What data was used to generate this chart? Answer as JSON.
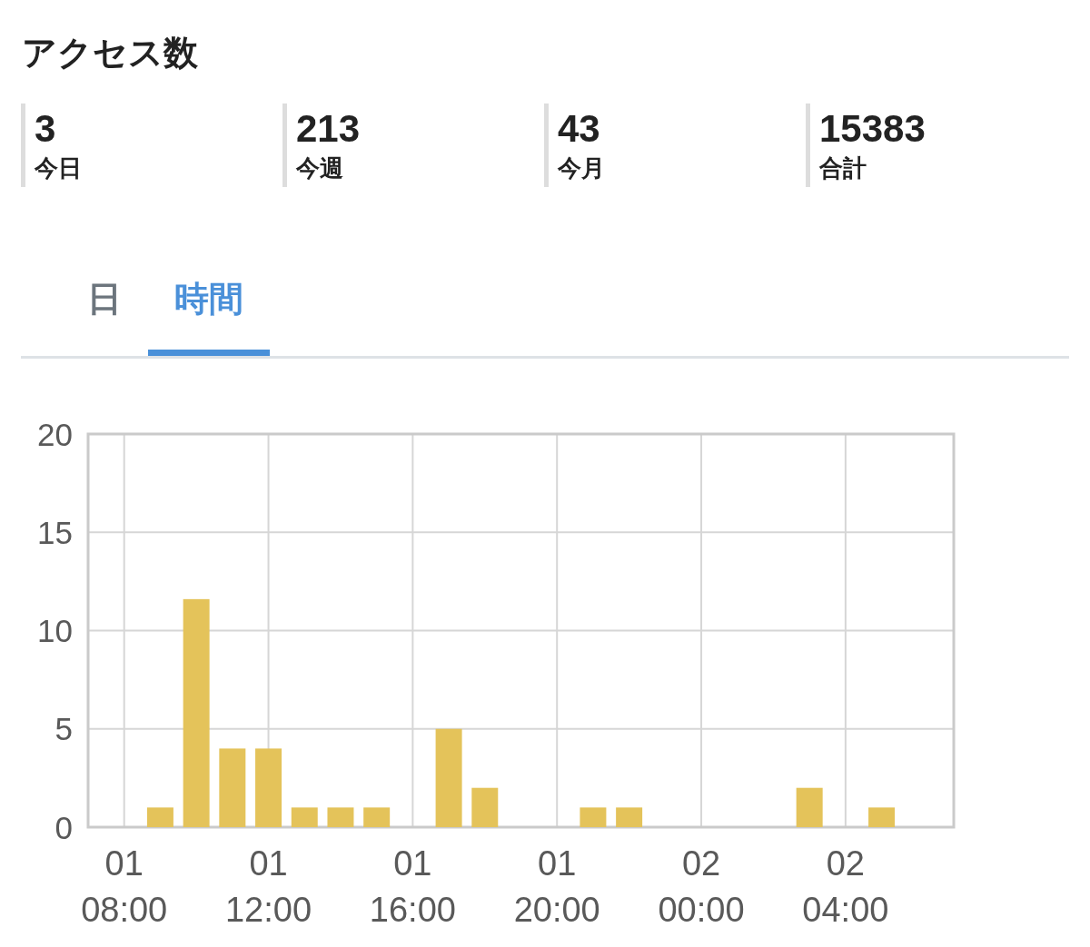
{
  "chart_data": [
    {
      "type": "other",
      "title": "アクセス数",
      "categories": [
        "今日",
        "今週",
        "今月",
        "合計"
      ],
      "values": [
        3,
        213,
        43,
        15383
      ],
      "data_labels": true,
      "annotations": [
        "日",
        "時間"
      ]
    },
    {
      "type": "bar",
      "categories": [
        null,
        "01\n08:00",
        null,
        null,
        null,
        "01\n12:00",
        null,
        null,
        null,
        "01\n16:00",
        null,
        null,
        null,
        "01\n20:00",
        null,
        null,
        null,
        "02\n00:00",
        null,
        null,
        null,
        "02\n04:00",
        null,
        null
      ],
      "values": [
        0,
        0,
        1,
        11.6,
        4,
        4,
        1,
        1,
        1,
        0,
        5,
        2,
        0,
        0,
        1,
        1,
        0,
        0,
        0,
        0,
        2,
        0,
        1,
        0
      ],
      "color": "#e4c35a",
      "ylim": [
        0,
        20
      ],
      "yticks": [
        0,
        5,
        10,
        15,
        20
      ],
      "grid": true
    }
  ]
}
